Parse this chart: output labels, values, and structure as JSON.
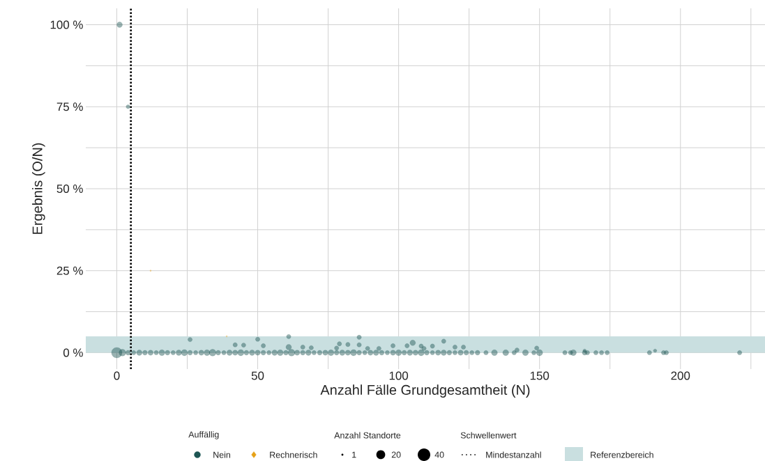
{
  "chart_data": {
    "type": "bubble",
    "xlabel": "Anzahl Fälle Grundgesamtheit (N)",
    "ylabel": "Ergebnis (O/N)",
    "legend_title": [
      "Auffällig",
      "Anzahl Standorte",
      "Schwellenwert"
    ],
    "xlim": [
      -11,
      230
    ],
    "ylim": [
      -5,
      105
    ],
    "xticks": [
      0,
      {
        "value": 25,
        "label": null
      },
      50,
      {
        "value": 75,
        "label": null
      },
      100,
      {
        "value": 125,
        "label": null
      },
      150,
      {
        "value": 175,
        "label": null
      },
      200,
      {
        "value": 225,
        "label": null
      }
    ],
    "yticks": [
      {
        "value": 0,
        "label": "0 %"
      },
      {
        "value": 12.5,
        "label": null
      },
      {
        "value": 25,
        "label": "25 %"
      },
      {
        "value": 37.5,
        "label": null
      },
      {
        "value": 50,
        "label": "50 %"
      },
      {
        "value": 62.5,
        "label": null
      },
      {
        "value": 75,
        "label": "75 %"
      },
      {
        "value": 87.5,
        "label": null
      },
      {
        "value": 100,
        "label": "100 %"
      }
    ],
    "grid": true,
    "legend": "bottom",
    "size_legend": [
      1,
      20,
      40
    ],
    "series": [
      {
        "name": "Nein",
        "color": "#1d5553",
        "marker": "circle",
        "x": [
          0,
          1,
          4,
          2,
          4,
          6,
          8,
          10,
          12,
          14,
          16,
          18,
          20,
          22,
          24,
          26,
          28,
          30,
          32,
          34,
          36,
          38,
          40,
          42,
          44,
          46,
          48,
          50,
          52,
          54,
          56,
          58,
          60,
          62,
          64,
          66,
          68,
          70,
          72,
          74,
          76,
          78,
          80,
          82,
          84,
          86,
          88,
          90,
          92,
          94,
          96,
          98,
          100,
          102,
          104,
          106,
          108,
          110,
          112,
          114,
          116,
          118,
          120,
          122,
          124,
          126,
          128,
          131,
          134,
          138,
          141,
          145,
          148,
          150,
          159,
          161,
          162,
          166,
          167,
          170,
          172,
          174,
          189,
          194,
          195,
          221,
          26,
          42,
          45,
          50,
          52,
          61,
          61,
          66,
          69,
          78,
          79,
          82,
          86,
          86,
          89,
          93,
          98,
          103,
          105,
          108,
          109,
          112,
          116,
          120,
          123,
          142,
          149,
          166,
          191
        ],
        "values": [
          0,
          100,
          75,
          0,
          0,
          0,
          0,
          0,
          0,
          0,
          0,
          0,
          0,
          0,
          0,
          0,
          0,
          0,
          0,
          0,
          0,
          0,
          0,
          0,
          0,
          0,
          0,
          0,
          0,
          0,
          0,
          0,
          0,
          0,
          0,
          0,
          0,
          0,
          0,
          0,
          0,
          0,
          0,
          0,
          0,
          0,
          0,
          0,
          0,
          0,
          0,
          0,
          0,
          0,
          0,
          0,
          0,
          0,
          0,
          0,
          0,
          0,
          0,
          0,
          0,
          0,
          0,
          0,
          0,
          0,
          0,
          0,
          0,
          0,
          0,
          0,
          0,
          0,
          0,
          0,
          0,
          0,
          0,
          0,
          0,
          0,
          4.0,
          2.4,
          2.3,
          4.1,
          2.1,
          4.9,
          1.7,
          1.7,
          1.5,
          1.4,
          2.7,
          2.5,
          4.7,
          2.4,
          1.3,
          1.3,
          2.1,
          2.1,
          3.0,
          2.0,
          1.3,
          2.0,
          3.5,
          1.7,
          1.7,
          0.8,
          1.4,
          0.6,
          0.6
        ],
        "sizes": [
          28,
          8,
          4,
          12,
          6,
          5,
          8,
          6,
          7,
          5,
          9,
          6,
          5,
          8,
          10,
          6,
          5,
          7,
          9,
          12,
          6,
          5,
          8,
          7,
          10,
          6,
          8,
          7,
          6,
          5,
          8,
          9,
          6,
          12,
          7,
          6,
          8,
          5,
          6,
          7,
          9,
          6,
          8,
          7,
          10,
          6,
          5,
          7,
          8,
          6,
          5,
          7,
          9,
          6,
          8,
          7,
          10,
          6,
          5,
          7,
          8,
          6,
          5,
          7,
          6,
          5,
          6,
          5,
          9,
          9,
          5,
          9,
          5,
          10,
          5,
          5,
          9,
          6,
          5,
          5,
          5,
          5,
          5,
          5,
          5,
          5,
          5,
          5,
          5,
          5,
          5,
          5,
          8,
          5,
          5,
          5,
          5,
          5,
          5,
          5,
          5,
          5,
          5,
          5,
          8,
          5,
          5,
          5,
          5,
          5,
          5,
          5,
          5,
          3,
          3
        ]
      },
      {
        "name": "Rechnerisch",
        "color": "#e6a117",
        "marker": "diamond",
        "x": [
          12,
          39
        ],
        "values": [
          25,
          5
        ],
        "sizes": [
          1,
          1
        ]
      }
    ],
    "ref_lines": [
      {
        "axis": "x",
        "value": 5,
        "label": "Mindestanzahl",
        "line_style": "dotted",
        "color": "#000000"
      }
    ],
    "bands": [
      {
        "axis": "y",
        "from": 0,
        "to": 5,
        "label": "Referenzbereich",
        "color": "#c9dfe0"
      }
    ]
  }
}
